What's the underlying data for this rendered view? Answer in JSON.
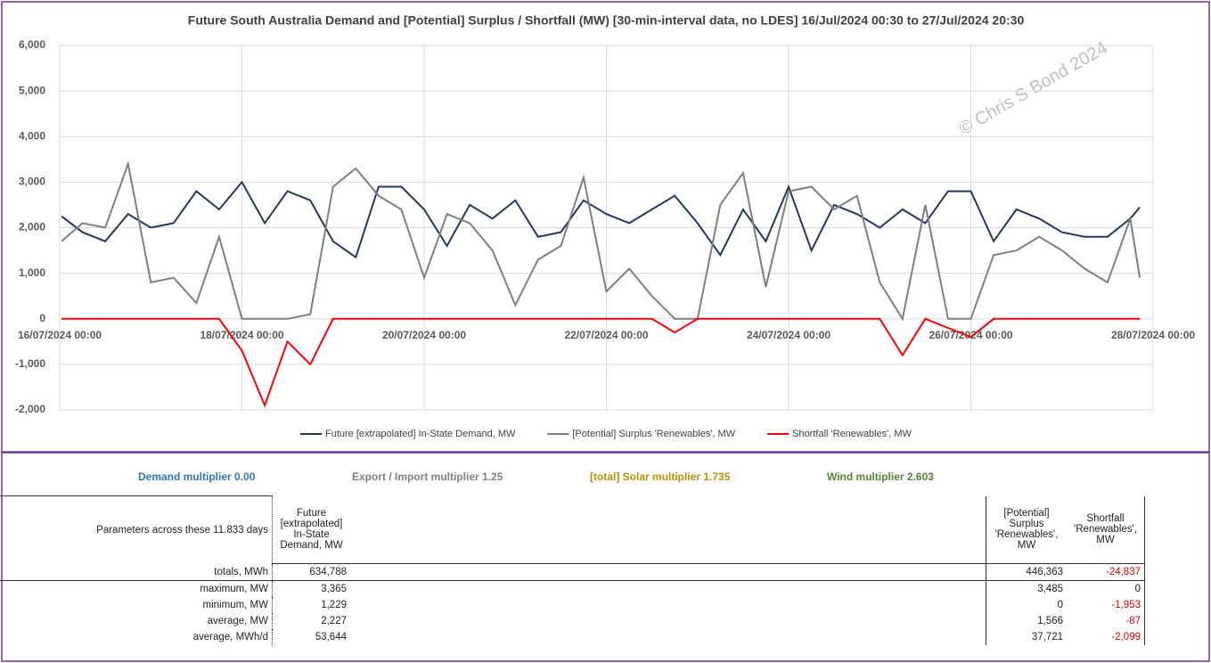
{
  "chart_data": {
    "type": "line",
    "title": "Future South Australia Demand and [Potential] Surplus / Shortfall (MW) [30-min-interval data, no LDES] 16/Jul/2024 00:30 to 27/Jul/2024 20:30",
    "watermark": "© Chris S Bond  2024",
    "x": [
      "16/07/2024 00:30",
      "16/07/2024 06:00",
      "16/07/2024 12:00",
      "16/07/2024 18:00",
      "17/07/2024 00:00",
      "17/07/2024 06:00",
      "17/07/2024 12:00",
      "17/07/2024 18:00",
      "18/07/2024 00:00",
      "18/07/2024 06:00",
      "18/07/2024 12:00",
      "18/07/2024 18:00",
      "19/07/2024 00:00",
      "19/07/2024 06:00",
      "19/07/2024 12:00",
      "19/07/2024 18:00",
      "20/07/2024 00:00",
      "20/07/2024 06:00",
      "20/07/2024 12:00",
      "20/07/2024 18:00",
      "21/07/2024 00:00",
      "21/07/2024 06:00",
      "21/07/2024 12:00",
      "21/07/2024 18:00",
      "22/07/2024 00:00",
      "22/07/2024 06:00",
      "22/07/2024 12:00",
      "22/07/2024 18:00",
      "23/07/2024 00:00",
      "23/07/2024 06:00",
      "23/07/2024 12:00",
      "23/07/2024 18:00",
      "24/07/2024 00:00",
      "24/07/2024 06:00",
      "24/07/2024 12:00",
      "24/07/2024 18:00",
      "25/07/2024 00:00",
      "25/07/2024 06:00",
      "25/07/2024 12:00",
      "25/07/2024 18:00",
      "26/07/2024 00:00",
      "26/07/2024 06:00",
      "26/07/2024 12:00",
      "26/07/2024 18:00",
      "27/07/2024 00:00",
      "27/07/2024 06:00",
      "27/07/2024 12:00",
      "27/07/2024 18:00",
      "27/07/2024 20:30"
    ],
    "series": [
      {
        "name": "Future [extrapolated] In-State Demand, MW",
        "color": "#1f3864",
        "values": [
          2250,
          1900,
          1700,
          2300,
          2000,
          2100,
          2800,
          2400,
          3000,
          2100,
          2800,
          2600,
          1700,
          1350,
          2900,
          2900,
          2400,
          1600,
          2500,
          2200,
          2600,
          1800,
          1900,
          2600,
          2300,
          2100,
          2400,
          2700,
          2100,
          1400,
          2400,
          1700,
          2900,
          1500,
          2500,
          2300,
          2000,
          2400,
          2100,
          2800,
          2800,
          1700,
          2400,
          2200,
          1900,
          1800,
          1800,
          2200,
          2450
        ]
      },
      {
        "name": "[Potential] Surplus 'Renewables', MW",
        "color": "#7f7f7f",
        "values": [
          1700,
          2100,
          2000,
          3400,
          800,
          900,
          350,
          1800,
          0,
          0,
          0,
          100,
          2900,
          3300,
          2700,
          2400,
          900,
          2300,
          2100,
          1500,
          300,
          1300,
          1600,
          3100,
          600,
          1100,
          500,
          0,
          0,
          2500,
          3200,
          700,
          2800,
          2900,
          2400,
          2700,
          800,
          0,
          2500,
          0,
          0,
          1400,
          1500,
          1800,
          1500,
          1100,
          800,
          2200,
          900
        ]
      },
      {
        "name": "Shortfall 'Renewables', MW",
        "color": "#ff0000",
        "values": [
          0,
          0,
          0,
          0,
          0,
          0,
          0,
          0,
          -700,
          -1900,
          -500,
          -1000,
          0,
          0,
          0,
          0,
          0,
          0,
          0,
          0,
          0,
          0,
          0,
          0,
          0,
          0,
          0,
          -300,
          0,
          0,
          0,
          0,
          0,
          0,
          0,
          0,
          0,
          -800,
          0,
          -200,
          -400,
          0,
          0,
          0,
          0,
          0,
          0,
          0,
          0
        ]
      }
    ],
    "xlim": [
      "16/07/2024 00:00",
      "28/07/2024 00:00"
    ],
    "xticks": [
      "16/07/2024 00:00",
      "18/07/2024 00:00",
      "20/07/2024 00:00",
      "22/07/2024 00:00",
      "24/07/2024 00:00",
      "26/07/2024 00:00",
      "28/07/2024 00:00"
    ],
    "ylim": [
      -2000,
      6000
    ],
    "yticks": [
      {
        "value": -2000,
        "label": "-2,000"
      },
      {
        "value": -1000,
        "label": "-1,000"
      },
      0,
      {
        "value": 1000,
        "label": "1,000"
      },
      {
        "value": 2000,
        "label": "2,000"
      },
      {
        "value": 3000,
        "label": "3,000"
      },
      {
        "value": 4000,
        "label": "4,000"
      },
      {
        "value": 5000,
        "label": "5,000"
      },
      {
        "value": 6000,
        "label": "6,000"
      }
    ],
    "grid": true,
    "legend": "bottom"
  },
  "parameters": {
    "multipliers": [
      "Demand multiplier 0.00",
      "Export / Import multiplier 1.25",
      "[total] Solar multiplier 1.735",
      "Wind multiplier 2.603"
    ],
    "caption": "Parameters across these 11.833 days",
    "headers": [
      "Future [extrapolated] In-State Demand, MW",
      "[Potential] Surplus 'Renewables', MW",
      "Shortfall 'Renewables', MW"
    ],
    "rows": [
      [
        "totals, MWh",
        "634,788",
        "446,363",
        "-24,837"
      ],
      [
        "maximum, MW",
        "3,365",
        "3,485",
        "0"
      ],
      [
        "minimum, MW",
        "1,229",
        "0",
        "-1,953"
      ],
      [
        "average, MW",
        "2,227",
        "1,566",
        "-87"
      ],
      [
        "average, MWh/d",
        "53,644",
        "37,721",
        "-2,099"
      ]
    ]
  }
}
